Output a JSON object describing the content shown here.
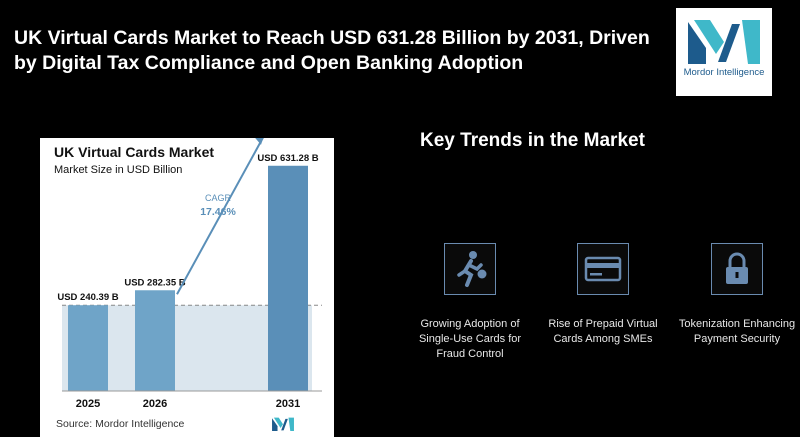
{
  "header": {
    "title": "UK Virtual Cards Market to Reach USD 631.28 Billion by 2031, Driven by Digital Tax Compliance and Open Banking Adoption",
    "logo_text": "Mordor Intelligence"
  },
  "chart_card": {
    "title": "UK Virtual Cards Market",
    "subtitle": "Market Size in USD Billion",
    "source": "Source:  Mordor Intelligence",
    "cagr_label": "CAGR",
    "cagr_value": "17.46%"
  },
  "chart_data": {
    "type": "bar",
    "title": "UK Virtual Cards Market",
    "subtitle": "Market Size in USD Billion",
    "categories": [
      "2025",
      "2026",
      "2031"
    ],
    "values": [
      240.39,
      282.35,
      631.28
    ],
    "data_labels": [
      "USD 240.39 B",
      "USD 282.35 B",
      "USD 631.28 B"
    ],
    "ylim": [
      0,
      700
    ],
    "annotation": {
      "label": "CAGR",
      "value": "17.46%"
    },
    "colors": {
      "bar_light": "#6fa4c8",
      "bar_dark": "#5a8fb8",
      "band": "#dbe6ee",
      "arrow": "#5a8fb8"
    }
  },
  "trends": {
    "title": "Key Trends in the Market",
    "items": [
      {
        "icon": "running-person-icon",
        "label": "Growing Adoption of Single-Use Cards for Fraud Control"
      },
      {
        "icon": "credit-card-icon",
        "label": "Rise of Prepaid Virtual Cards Among SMEs"
      },
      {
        "icon": "padlock-icon",
        "label": "Tokenization Enhancing Payment Security"
      }
    ]
  },
  "colors": {
    "background": "#000000",
    "accent": "#5a8fb8",
    "logo_blue": "#1d5b8c",
    "logo_teal": "#3fb8c9"
  }
}
